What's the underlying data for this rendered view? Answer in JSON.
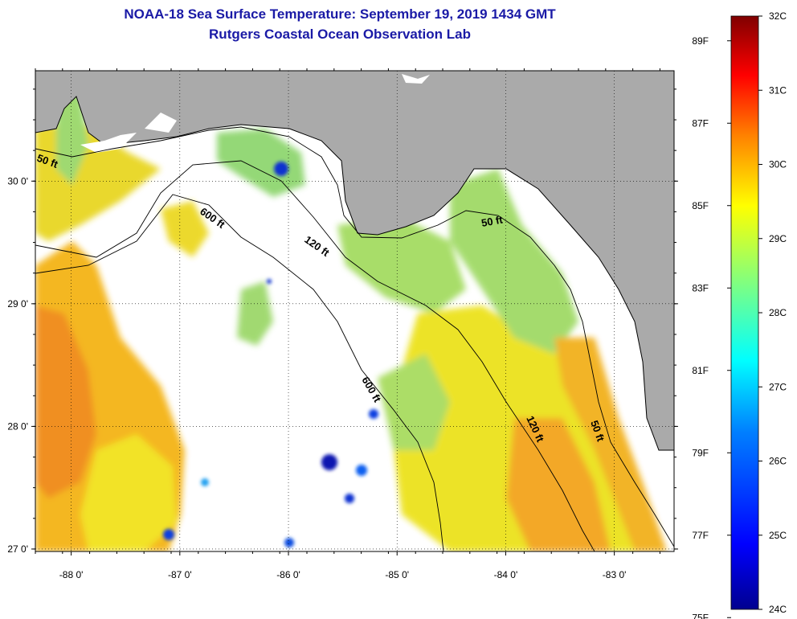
{
  "title": {
    "line1": "NOAA-18 Sea Surface Temperature:  September 19, 2019 1434 GMT",
    "line2": "Rutgers Coastal Ocean Observation Lab"
  },
  "map": {
    "lon_range": [
      -88.33,
      -82.45
    ],
    "lat_range": [
      26.98,
      30.9
    ],
    "lon_ticks": [
      {
        "value": -88,
        "label": "-88 0'"
      },
      {
        "value": -87,
        "label": "-87 0'"
      },
      {
        "value": -86,
        "label": "-86 0'"
      },
      {
        "value": -85,
        "label": "-85 0'"
      },
      {
        "value": -84,
        "label": "-84 0'"
      },
      {
        "value": -83,
        "label": "-83 0'"
      }
    ],
    "lat_ticks": [
      {
        "value": 27,
        "label": "27 0'"
      },
      {
        "value": 28,
        "label": "28 0'"
      },
      {
        "value": 29,
        "label": "29 0'"
      },
      {
        "value": 30,
        "label": "30 0'"
      }
    ],
    "grid": true,
    "land_color": "#aaaaaa",
    "coastline_color": "#000000",
    "contours": [
      {
        "name": "50 ft",
        "labels": [
          "50 ft",
          "50 ft",
          "50 ft"
        ]
      },
      {
        "name": "120 ft",
        "labels": [
          "120 ft",
          "120 ft"
        ]
      },
      {
        "name": "600 ft",
        "labels": [
          "600 ft",
          "600 ft"
        ]
      }
    ]
  },
  "colorbar": {
    "celsius_labels": [
      "32C",
      "31C",
      "30C",
      "29C",
      "28C",
      "27C",
      "26C",
      "25C",
      "24C"
    ],
    "fahrenheit_labels": [
      "89F",
      "87F",
      "85F",
      "83F",
      "81F",
      "79F",
      "77F",
      "75F"
    ],
    "range_c": [
      24,
      32
    ],
    "colormap": "jet",
    "colors": [
      "#00008f",
      "#0000ff",
      "#0080ff",
      "#00ffff",
      "#80ff80",
      "#ffff00",
      "#ff8000",
      "#ff0000",
      "#800000"
    ]
  }
}
